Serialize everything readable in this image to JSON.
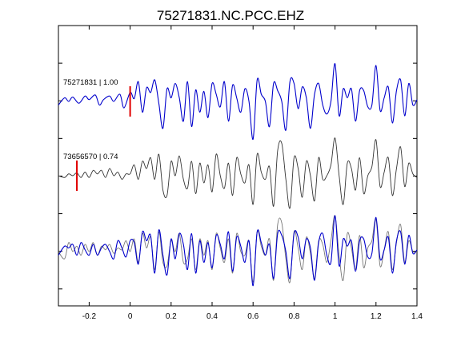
{
  "chart_data": {
    "type": "line",
    "title": "75271831.NC.PCC.EHZ",
    "xlabel": "",
    "ylabel": "",
    "xlim": [
      -0.35,
      1.4
    ],
    "xticks": [
      -0.2,
      0,
      0.2,
      0.4,
      0.6,
      0.8,
      1,
      1.2,
      1.4
    ],
    "xtick_labels": [
      "-0.2",
      "0",
      "0.2",
      "0.4",
      "0.6",
      "0.8",
      "1",
      "1.2",
      "1.4"
    ],
    "grid": false,
    "legend": "none",
    "colors": {
      "primary": "#0000cc",
      "secondary": "#333333",
      "overlay": "#777777",
      "pick": "#e00000"
    },
    "trace_labels": [
      {
        "event": "75271831",
        "cc": "1.00",
        "text": "75271831 | 1.00",
        "pick_time": 0.0
      },
      {
        "event": "73656570",
        "cc": "0.74",
        "text": "73656570 | 0.74",
        "pick_time": -0.26
      }
    ],
    "series": [
      {
        "key": "primary",
        "x": [
          -0.35,
          -0.32,
          -0.3,
          -0.28,
          -0.25,
          -0.22,
          -0.2,
          -0.17,
          -0.15,
          -0.13,
          -0.1,
          -0.08,
          -0.05,
          -0.03,
          0.0,
          0.02,
          0.04,
          0.06,
          0.08,
          0.1,
          0.12,
          0.14,
          0.16,
          0.18,
          0.2,
          0.22,
          0.24,
          0.26,
          0.28,
          0.3,
          0.32,
          0.34,
          0.36,
          0.38,
          0.4,
          0.42,
          0.44,
          0.46,
          0.48,
          0.5,
          0.52,
          0.54,
          0.56,
          0.58,
          0.6,
          0.62,
          0.64,
          0.66,
          0.68,
          0.7,
          0.72,
          0.74,
          0.76,
          0.78,
          0.8,
          0.82,
          0.84,
          0.86,
          0.88,
          0.9,
          0.92,
          0.94,
          0.96,
          0.98,
          1.0,
          1.02,
          1.04,
          1.06,
          1.08,
          1.1,
          1.12,
          1.14,
          1.16,
          1.18,
          1.2,
          1.22,
          1.24,
          1.26,
          1.28,
          1.3,
          1.32,
          1.34,
          1.36,
          1.38,
          1.4
        ],
        "y": [
          -0.1,
          0.1,
          0.0,
          0.12,
          -0.05,
          0.15,
          0.05,
          0.18,
          -0.1,
          0.05,
          0.15,
          0.0,
          0.2,
          -0.18,
          0.25,
          0.08,
          0.55,
          -0.3,
          0.38,
          0.25,
          0.6,
          -0.05,
          -0.75,
          0.35,
          0.1,
          0.5,
          0.1,
          -0.55,
          0.55,
          -0.7,
          0.32,
          -0.3,
          0.28,
          -0.45,
          0.5,
          0.2,
          -0.15,
          0.55,
          -0.55,
          0.45,
          0.1,
          -0.3,
          0.35,
          0.0,
          -1.05,
          0.6,
          0.2,
          0.0,
          -0.7,
          0.5,
          0.3,
          0.0,
          -0.8,
          0.55,
          0.5,
          -0.2,
          0.4,
          0.1,
          -0.75,
          0.2,
          0.5,
          -0.1,
          -0.35,
          0.0,
          1.05,
          -0.4,
          0.35,
          0.1,
          0.35,
          -0.55,
          0.3,
          0.3,
          -0.15,
          -0.1,
          1.0,
          -0.25,
          0.1,
          0.4,
          -0.6,
          0.3,
          0.6,
          -0.4,
          0.5,
          -0.1,
          0.05
        ]
      },
      {
        "key": "secondary",
        "x": [
          -0.35,
          -0.32,
          -0.3,
          -0.28,
          -0.26,
          -0.24,
          -0.22,
          -0.2,
          -0.18,
          -0.16,
          -0.14,
          -0.12,
          -0.1,
          -0.08,
          -0.06,
          -0.04,
          -0.02,
          0.0,
          0.02,
          0.04,
          0.06,
          0.08,
          0.1,
          0.12,
          0.14,
          0.16,
          0.18,
          0.2,
          0.22,
          0.24,
          0.26,
          0.28,
          0.3,
          0.32,
          0.34,
          0.36,
          0.38,
          0.4,
          0.42,
          0.44,
          0.46,
          0.48,
          0.5,
          0.52,
          0.54,
          0.56,
          0.58,
          0.6,
          0.62,
          0.64,
          0.66,
          0.68,
          0.7,
          0.72,
          0.74,
          0.76,
          0.78,
          0.8,
          0.82,
          0.84,
          0.86,
          0.88,
          0.9,
          0.92,
          0.94,
          0.96,
          0.98,
          1.0,
          1.02,
          1.04,
          1.06,
          1.08,
          1.1,
          1.12,
          1.14,
          1.16,
          1.18,
          1.2,
          1.22,
          1.24,
          1.26,
          1.28,
          1.3,
          1.32,
          1.34,
          1.36,
          1.38,
          1.4
        ],
        "y": [
          0.0,
          -0.05,
          0.05,
          0.0,
          0.08,
          -0.05,
          0.1,
          -0.05,
          0.15,
          0.05,
          0.15,
          -0.05,
          0.2,
          0.0,
          0.1,
          -0.1,
          0.05,
          0.05,
          0.3,
          -0.1,
          0.4,
          0.2,
          0.5,
          -0.1,
          0.6,
          -0.4,
          -0.55,
          0.4,
          0.0,
          0.55,
          -0.1,
          -0.35,
          0.4,
          -0.5,
          0.35,
          -0.2,
          0.3,
          -0.45,
          0.6,
          0.0,
          -0.35,
          0.35,
          -0.55,
          0.5,
          0.05,
          -0.2,
          0.3,
          -0.8,
          0.6,
          0.1,
          -0.1,
          0.25,
          -0.85,
          0.7,
          0.9,
          -0.1,
          -0.9,
          0.5,
          0.2,
          -0.6,
          0.4,
          0.0,
          -0.7,
          0.5,
          -0.1,
          0.0,
          0.3,
          1.05,
          0.0,
          -0.8,
          0.35,
          0.2,
          -0.4,
          0.5,
          -0.5,
          0.0,
          0.25,
          1.0,
          -0.3,
          0.1,
          0.5,
          -0.55,
          0.2,
          0.8,
          -0.3,
          0.35,
          0.05,
          -0.05
        ]
      },
      {
        "key": "overlay",
        "x": [
          -0.35,
          -0.32,
          -0.3,
          -0.28,
          -0.26,
          -0.24,
          -0.22,
          -0.2,
          -0.18,
          -0.16,
          -0.14,
          -0.12,
          -0.1,
          -0.08,
          -0.06,
          -0.04,
          -0.02,
          0.0,
          0.02,
          0.04,
          0.06,
          0.08,
          0.1,
          0.12,
          0.14,
          0.16,
          0.18,
          0.2,
          0.22,
          0.24,
          0.26,
          0.28,
          0.3,
          0.32,
          0.34,
          0.36,
          0.38,
          0.4,
          0.42,
          0.44,
          0.46,
          0.48,
          0.5,
          0.52,
          0.54,
          0.56,
          0.58,
          0.6,
          0.62,
          0.64,
          0.66,
          0.68,
          0.7,
          0.72,
          0.74,
          0.76,
          0.78,
          0.8,
          0.82,
          0.84,
          0.86,
          0.88,
          0.9,
          0.92,
          0.94,
          0.96,
          0.98,
          1.0,
          1.02,
          1.04,
          1.06,
          1.08,
          1.1,
          1.12,
          1.14,
          1.16,
          1.18,
          1.2,
          1.22,
          1.24,
          1.26,
          1.28,
          1.3,
          1.32,
          1.34,
          1.36,
          1.38,
          1.4
        ],
        "y": [
          0.0,
          -0.2,
          0.25,
          0.0,
          0.15,
          -0.1,
          0.2,
          0.0,
          0.25,
          -0.1,
          0.15,
          0.05,
          0.2,
          -0.05,
          0.1,
          0.05,
          0.3,
          0.0,
          0.35,
          -0.3,
          0.5,
          0.1,
          0.4,
          -0.5,
          0.55,
          -0.3,
          -0.4,
          0.3,
          0.0,
          0.5,
          -0.3,
          -0.2,
          0.35,
          -0.5,
          0.35,
          -0.1,
          0.3,
          -0.5,
          0.5,
          0.1,
          -0.3,
          0.35,
          -0.6,
          0.5,
          0.0,
          -0.1,
          0.3,
          -0.85,
          0.55,
          0.15,
          -0.1,
          0.35,
          -0.8,
          0.75,
          0.8,
          -0.2,
          -0.85,
          0.55,
          0.1,
          -0.5,
          0.4,
          -0.05,
          -0.75,
          0.3,
          0.2,
          -0.3,
          0.3,
          1.0,
          -0.1,
          -0.8,
          0.5,
          0.1,
          -0.5,
          0.45,
          -0.45,
          0.1,
          0.3,
          0.9,
          -0.4,
          0.05,
          0.55,
          -0.5,
          0.25,
          0.75,
          -0.3,
          0.3,
          0.0,
          0.0
        ]
      },
      {
        "key": "primary_overlay",
        "x": [
          -0.35,
          -0.32,
          -0.3,
          -0.28,
          -0.26,
          -0.24,
          -0.22,
          -0.2,
          -0.18,
          -0.16,
          -0.14,
          -0.12,
          -0.1,
          -0.08,
          -0.06,
          -0.04,
          -0.02,
          0.0,
          0.02,
          0.04,
          0.06,
          0.08,
          0.1,
          0.12,
          0.14,
          0.16,
          0.18,
          0.2,
          0.22,
          0.24,
          0.26,
          0.28,
          0.3,
          0.32,
          0.34,
          0.36,
          0.38,
          0.4,
          0.42,
          0.44,
          0.46,
          0.48,
          0.5,
          0.52,
          0.54,
          0.56,
          0.58,
          0.6,
          0.62,
          0.64,
          0.66,
          0.68,
          0.7,
          0.72,
          0.74,
          0.76,
          0.78,
          0.8,
          0.82,
          0.84,
          0.86,
          0.88,
          0.9,
          0.92,
          0.94,
          0.96,
          0.98,
          1.0,
          1.02,
          1.04,
          1.06,
          1.08,
          1.1,
          1.12,
          1.14,
          1.16,
          1.18,
          1.2,
          1.22,
          1.24,
          1.26,
          1.28,
          1.3,
          1.32,
          1.34,
          1.36,
          1.38,
          1.4
        ],
        "y": [
          -0.1,
          0.15,
          0.1,
          0.2,
          -0.1,
          0.25,
          0.05,
          -0.1,
          0.2,
          -0.1,
          0.1,
          0.2,
          0.0,
          -0.2,
          0.3,
          0.1,
          -0.15,
          0.3,
          0.25,
          -0.35,
          0.55,
          0.3,
          0.45,
          -0.6,
          0.6,
          -0.1,
          -0.65,
          0.35,
          -0.2,
          0.5,
          0.2,
          -0.5,
          0.5,
          -0.6,
          0.3,
          -0.3,
          0.25,
          -0.45,
          0.45,
          0.2,
          -0.2,
          0.55,
          -0.55,
          0.4,
          0.15,
          -0.3,
          0.3,
          -0.95,
          0.55,
          0.25,
          -0.1,
          0.2,
          -0.75,
          0.5,
          0.45,
          0.0,
          -0.75,
          0.5,
          0.4,
          -0.2,
          0.35,
          0.1,
          -0.8,
          0.25,
          0.5,
          -0.1,
          -0.3,
          1.0,
          -0.4,
          0.35,
          0.15,
          0.3,
          -0.55,
          0.3,
          0.35,
          -0.15,
          -0.05,
          0.95,
          -0.2,
          0.05,
          0.4,
          -0.6,
          0.3,
          0.55,
          -0.35,
          0.45,
          -0.05,
          0.05
        ]
      }
    ]
  }
}
